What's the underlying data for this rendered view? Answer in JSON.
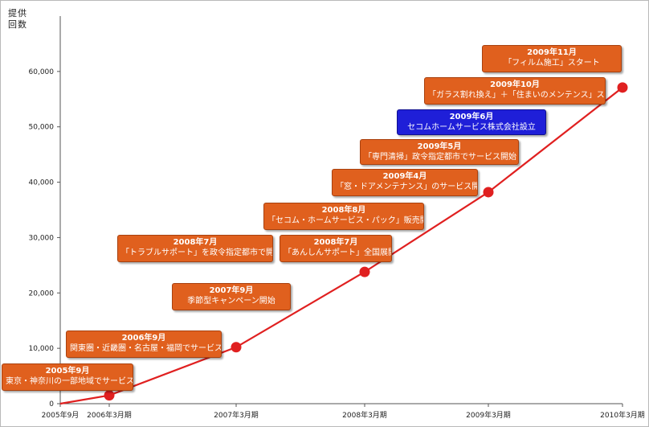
{
  "chart_data": {
    "type": "line",
    "ylabel": "提供回数",
    "ylim": [
      0,
      70000
    ],
    "yticks": [
      0,
      10000,
      20000,
      30000,
      40000,
      50000,
      60000
    ],
    "ytick_labels": [
      "0",
      "10,000",
      "20,000",
      "30,000",
      "40,000",
      "50,000",
      "60,000"
    ],
    "x_tick_labels": [
      "2005年9月",
      "2006年3月期",
      "2007年3月期",
      "2008年3月期",
      "2009年3月期",
      "2010年3月期"
    ],
    "series": [
      {
        "color": "#e02020",
        "points": [
          {
            "x": "2005年9月",
            "y": 0
          },
          {
            "x": "2006年3月期",
            "y": 1500
          },
          {
            "x": "2007年3月期",
            "y": 10200
          },
          {
            "x": "2008年3月期",
            "y": 23800
          },
          {
            "x": "2009年3月期",
            "y": 38200
          },
          {
            "x": "2010年3月期",
            "y": 57100
          }
        ],
        "markers": [
          1,
          2,
          3,
          4,
          5
        ]
      }
    ],
    "annotations": [
      {
        "date": "2005年9月",
        "text": "東京・神奈川の一部地域でサービス開始",
        "color": "#e0601e"
      },
      {
        "date": "2006年9月",
        "text": "関東圏・近畿圏・名古屋・福岡でサービス開始",
        "color": "#e0601e"
      },
      {
        "date": "2007年9月",
        "text": "季節型キャンペーン開始",
        "color": "#e0601e"
      },
      {
        "date": "2008年7月",
        "text": "「トラブルサポート」を政令指定都市で開始",
        "color": "#e0601e"
      },
      {
        "date": "2008年7月",
        "text": "「あんしんサポート」全国展開",
        "color": "#e0601e"
      },
      {
        "date": "2008年8月",
        "text": "「セコム・ホームサービス・パック」販売開始",
        "color": "#e0601e"
      },
      {
        "date": "2009年4月",
        "text": "「窓・ドアメンテナンス」のサービス開始",
        "color": "#e0601e"
      },
      {
        "date": "2009年5月",
        "text": "「専門清掃」政令指定都市でサービス開始",
        "color": "#e0601e"
      },
      {
        "date": "2009年6月",
        "text": "セコムホームサービス株式会社設立",
        "color": "#1f1fd8"
      },
      {
        "date": "2009年10月",
        "text": "「ガラス割れ換え」＋「住まいのメンテンス」スタート",
        "color": "#e0601e"
      },
      {
        "date": "2009年11月",
        "text": "「フィルム施工」スタート",
        "color": "#e0601e"
      }
    ],
    "grid": false,
    "legend": "none"
  }
}
